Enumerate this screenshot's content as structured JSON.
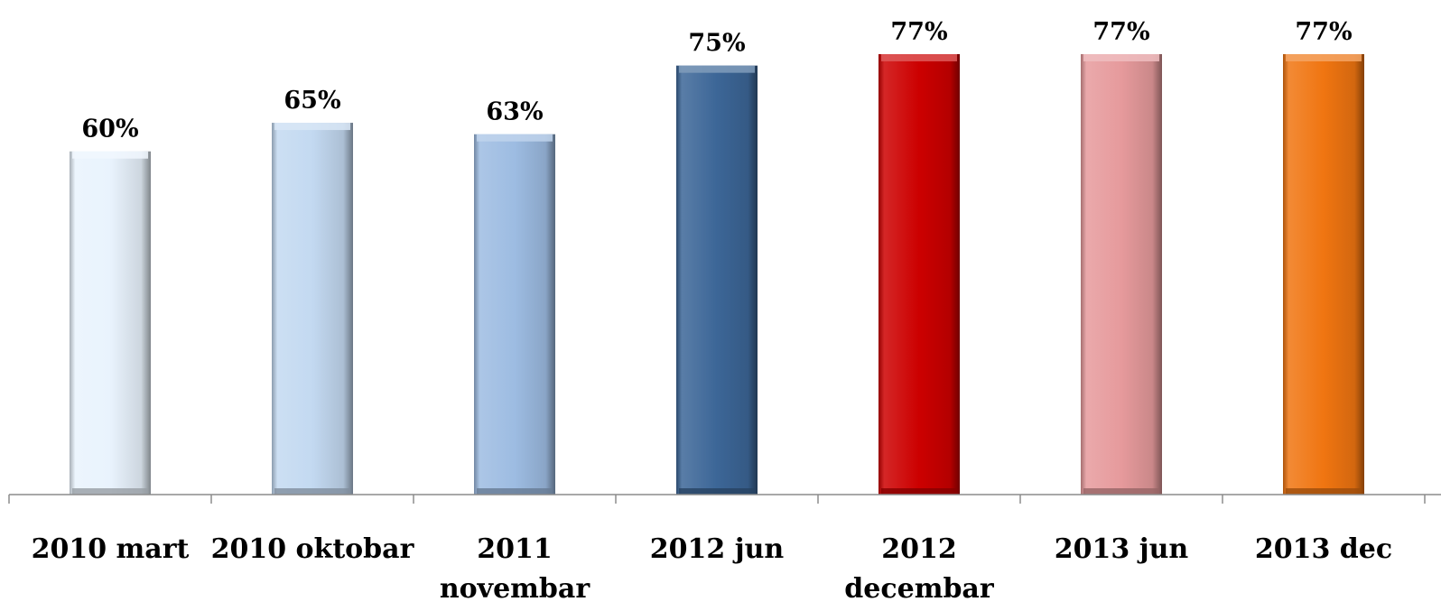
{
  "chart_data": {
    "type": "bar",
    "categories": [
      "2010 mart",
      "2010 oktobar",
      "2011 novembar",
      "2012 jun",
      "2012 decembar",
      "2013 jun",
      "2013 dec"
    ],
    "category_lines": [
      [
        "2010 mart"
      ],
      [
        "2010 oktobar"
      ],
      [
        "2011",
        "novembar"
      ],
      [
        "2012 jun"
      ],
      [
        "2012",
        "decembar"
      ],
      [
        "2013 jun"
      ],
      [
        "2013 dec"
      ]
    ],
    "values": [
      60,
      65,
      63,
      75,
      77,
      77,
      77
    ],
    "data_labels": [
      "60%",
      "65%",
      "63%",
      "75%",
      "77%",
      "77%",
      "77%"
    ],
    "colors": [
      "#E9F3FD",
      "#C3D9F1",
      "#9DBCE2",
      "#3C6697",
      "#CC0000",
      "#E69A9C",
      "#F07511"
    ],
    "title": "",
    "xlabel": "",
    "ylabel": "",
    "ylim": [
      0,
      100
    ],
    "grid": false,
    "legend": "none"
  }
}
